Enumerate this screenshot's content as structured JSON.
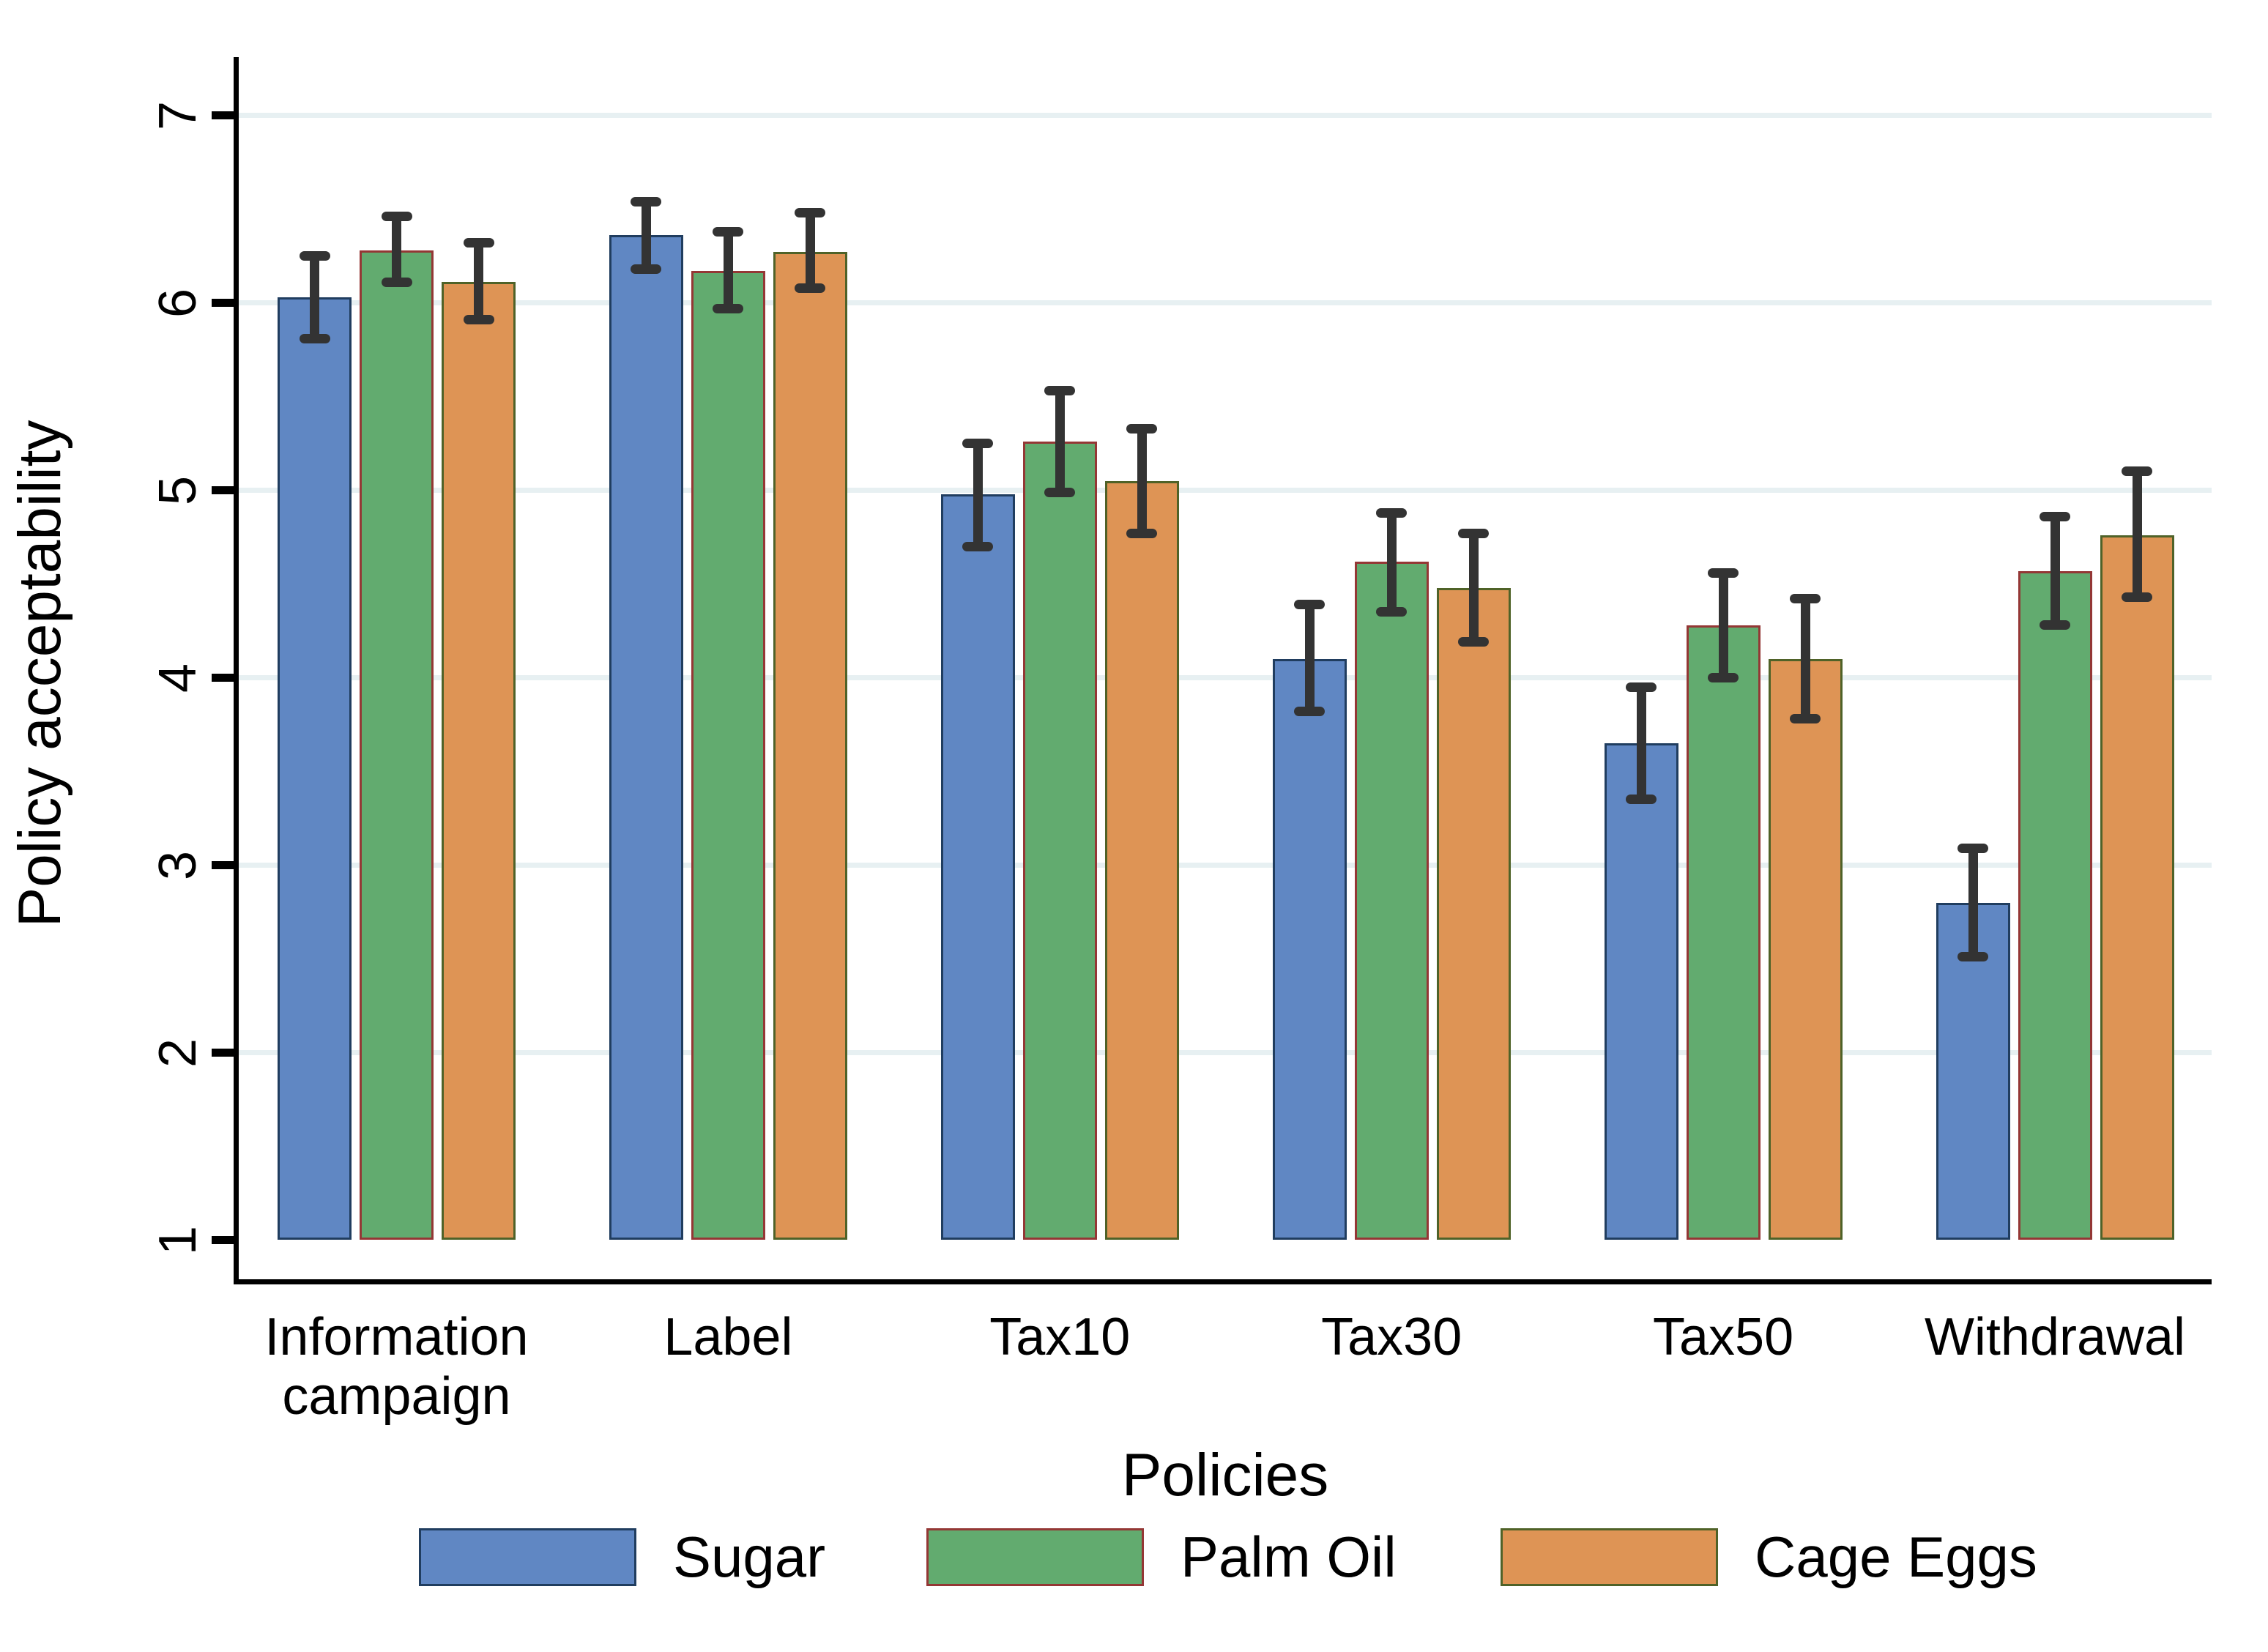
{
  "chart_data": {
    "type": "bar",
    "title": "",
    "xlabel": "Policies",
    "ylabel": "Policy acceptability",
    "ylim": [
      1,
      7
    ],
    "yticks": [
      1,
      2,
      3,
      4,
      5,
      6,
      7
    ],
    "grid": true,
    "legend_position": "bottom",
    "error_bars": true,
    "categories": [
      "Information\ncampaign",
      "Label",
      "Tax10",
      "Tax30",
      "Tax50",
      "Withdrawal"
    ],
    "series": [
      {
        "name": "Sugar",
        "fill": "#6087C3",
        "outline": "#203D5F",
        "values": [
          6.03,
          6.36,
          4.98,
          4.1,
          3.65,
          2.8
        ],
        "ci_low": [
          5.81,
          6.18,
          4.7,
          3.82,
          3.35,
          2.51
        ],
        "ci_high": [
          6.25,
          6.54,
          5.25,
          4.39,
          3.95,
          3.09
        ]
      },
      {
        "name": "Palm Oil",
        "fill": "#62AB6F",
        "outline": "#943735",
        "values": [
          6.28,
          6.17,
          5.26,
          4.62,
          4.28,
          4.57
        ],
        "ci_low": [
          6.11,
          5.97,
          4.99,
          4.35,
          4.0,
          4.28
        ],
        "ci_high": [
          6.46,
          6.38,
          5.53,
          4.88,
          4.56,
          4.86
        ]
      },
      {
        "name": "Cage Eggs",
        "fill": "#DE9455",
        "outline": "#4F6228",
        "values": [
          6.11,
          6.27,
          5.05,
          4.48,
          4.1,
          4.76
        ],
        "ci_low": [
          5.91,
          6.08,
          4.77,
          4.19,
          3.78,
          4.43
        ],
        "ci_high": [
          6.32,
          6.48,
          5.33,
          4.77,
          4.42,
          5.1
        ]
      }
    ],
    "colors": {
      "gridline": "#E7F0F2",
      "axis": "#000000",
      "error_bar": "#333333",
      "background": "#FFFFFF"
    }
  }
}
